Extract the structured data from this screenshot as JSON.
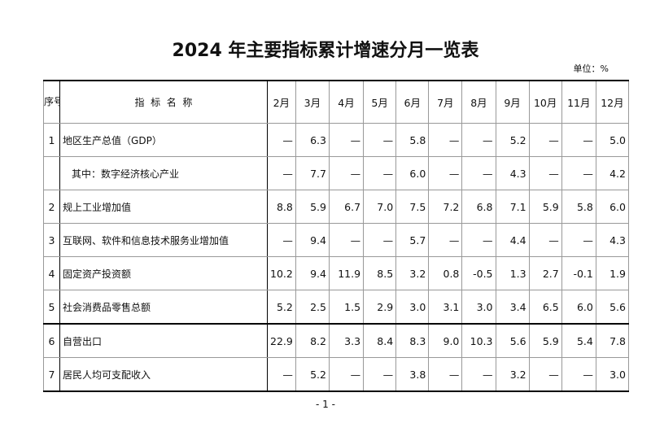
{
  "title": "2024 年主要指标累计增速分月一览表",
  "unit": "单位：%",
  "table": {
    "seq_header": "序号",
    "name_header": "指  标  名  称",
    "months": [
      "2月",
      "3月",
      "4月",
      "5月",
      "6月",
      "7月",
      "8月",
      "9月",
      "10月",
      "11月",
      "12月"
    ],
    "rows": [
      {
        "seq": "1",
        "name": "地区生产总值（GDP）",
        "values": [
          "—",
          "6.3",
          "—",
          "—",
          "5.8",
          "—",
          "—",
          "5.2",
          "—",
          "—",
          "5.0"
        ]
      },
      {
        "seq": "",
        "name": "其中：数字经济核心产业",
        "values": [
          "—",
          "7.7",
          "—",
          "—",
          "6.0",
          "—",
          "—",
          "4.3",
          "—",
          "—",
          "4.2"
        ]
      },
      {
        "seq": "2",
        "name": "规上工业增加值",
        "values": [
          "8.8",
          "5.9",
          "6.7",
          "7.0",
          "7.5",
          "7.2",
          "6.8",
          "7.1",
          "5.9",
          "5.8",
          "6.0"
        ]
      },
      {
        "seq": "3",
        "name": "互联网、软件和信息技术服务业增加值",
        "values": [
          "—",
          "9.4",
          "—",
          "—",
          "5.7",
          "—",
          "—",
          "4.4",
          "—",
          "—",
          "4.3"
        ]
      },
      {
        "seq": "4",
        "name": "固定资产投资额",
        "values": [
          "10.2",
          "9.4",
          "11.9",
          "8.5",
          "3.2",
          "0.8",
          "-0.5",
          "1.3",
          "2.7",
          "-0.1",
          "1.9"
        ]
      },
      {
        "seq": "5",
        "name": "社会消费品零售总额",
        "values": [
          "5.2",
          "2.5",
          "1.5",
          "2.9",
          "3.0",
          "3.1",
          "3.0",
          "3.4",
          "6.5",
          "6.0",
          "5.6"
        ]
      },
      {
        "seq": "6",
        "name": "自营出口",
        "values": [
          "22.9",
          "8.2",
          "3.3",
          "8.4",
          "8.3",
          "9.0",
          "10.3",
          "5.6",
          "5.9",
          "5.4",
          "7.8"
        ]
      },
      {
        "seq": "7",
        "name": "居民人均可支配收入",
        "values": [
          "—",
          "5.2",
          "—",
          "—",
          "3.8",
          "—",
          "—",
          "3.2",
          "—",
          "—",
          "3.0"
        ]
      }
    ]
  },
  "page_number": "- 1 -"
}
